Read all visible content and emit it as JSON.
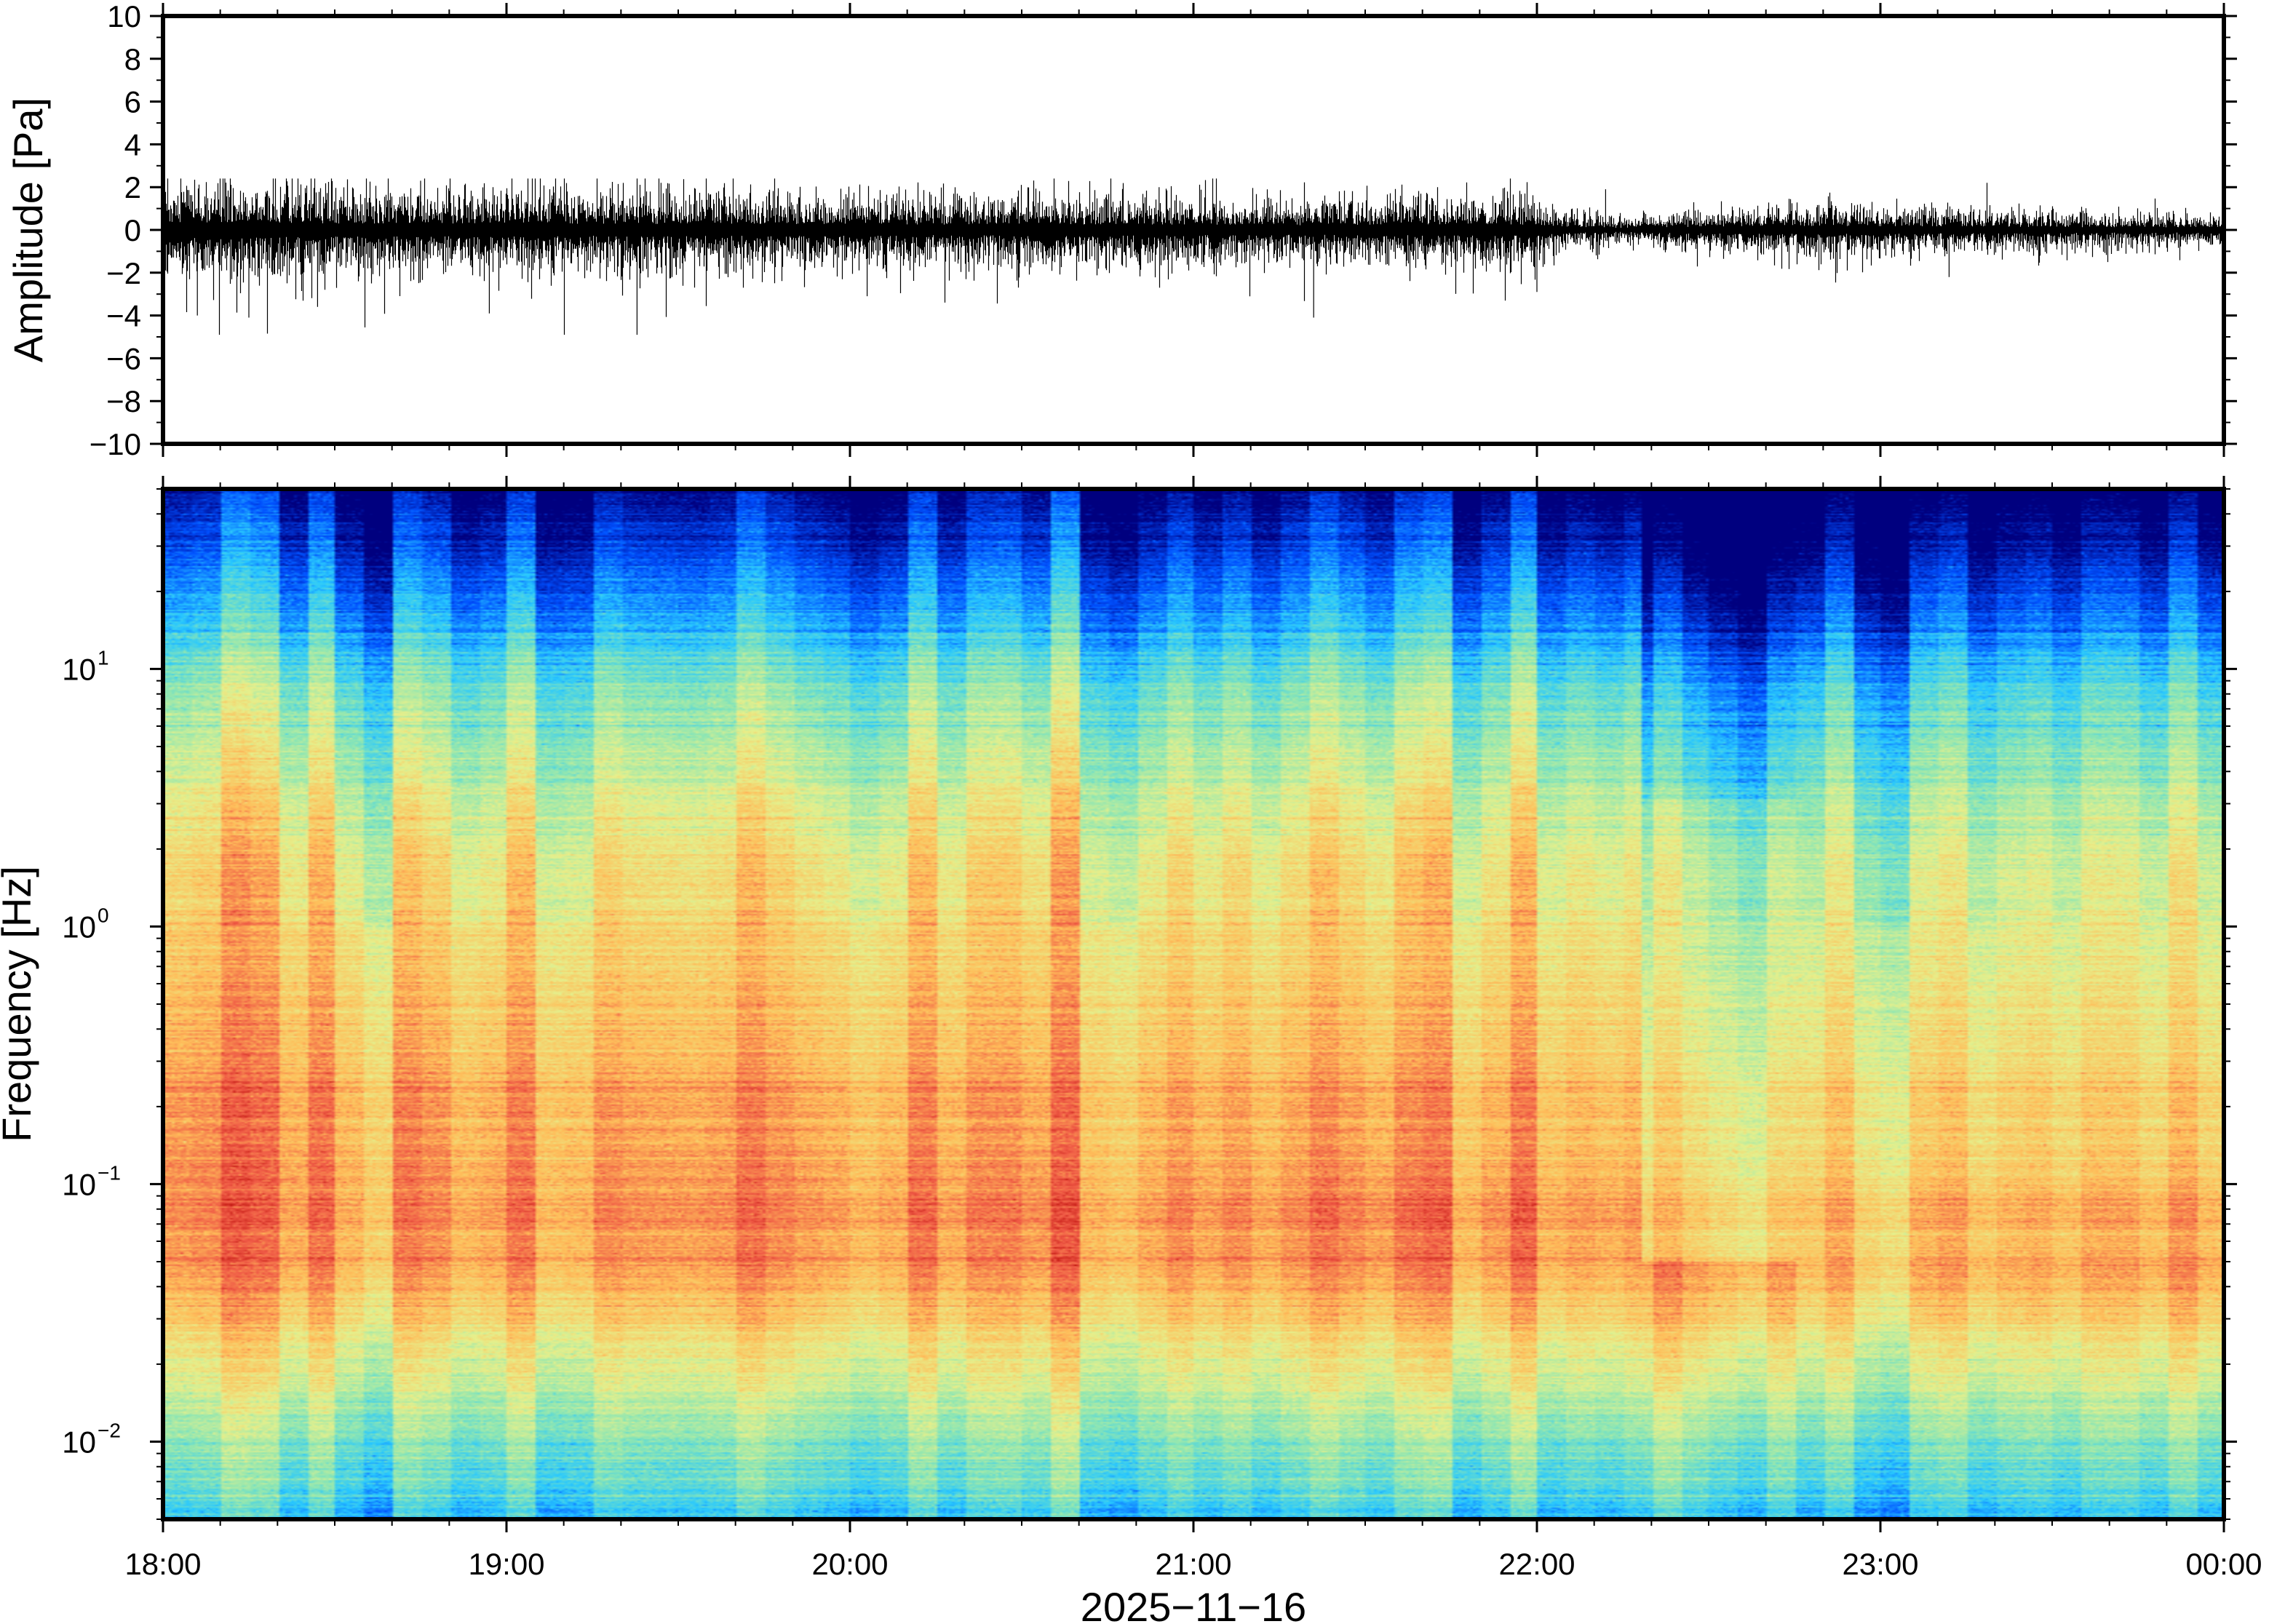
{
  "chart_data": [
    {
      "type": "line",
      "panel": "waveform",
      "ylabel": "Amplitude [Pa]",
      "ylim": [
        -10,
        10
      ],
      "yticks": [
        10,
        8,
        6,
        4,
        2,
        0,
        -2,
        -4,
        -6,
        -8,
        -10
      ],
      "ytick_labels": [
        "10",
        "8",
        "6",
        "4",
        "2",
        "0",
        "−2",
        "−4",
        "−6",
        "−8",
        "−10"
      ],
      "xlim": [
        "18:00",
        "00:00"
      ],
      "series": [
        {
          "envelope_hours": [
            0,
            0.25,
            0.5,
            0.75,
            1,
            1.25,
            1.5,
            1.75,
            2,
            2.25,
            2.5,
            2.75,
            3,
            3.25,
            3.5,
            3.75,
            4,
            4.1,
            4.25,
            4.5,
            4.75,
            5,
            5.25,
            5.5,
            5.75,
            6
          ],
          "typical_amplitude_pa": [
            1.2,
            1.1,
            1.0,
            1.0,
            1.0,
            0.9,
            0.95,
            0.9,
            0.9,
            0.8,
            0.85,
            0.85,
            0.8,
            0.7,
            0.75,
            0.85,
            0.8,
            0.4,
            0.3,
            0.5,
            0.6,
            0.6,
            0.5,
            0.45,
            0.4,
            0.4
          ],
          "peak_min_pa": -4.9,
          "peak_max_pa": 2.4
        }
      ],
      "grid": false
    },
    {
      "type": "heatmap",
      "panel": "spectrogram",
      "ylabel": "Frequency [Hz]",
      "yscale": "log",
      "ylim_hz": [
        0.005,
        50
      ],
      "yticks_hz": [
        0.01,
        0.1,
        1,
        10
      ],
      "ytick_labels": [
        {
          "base": "10",
          "exp": "−2"
        },
        {
          "base": "10",
          "exp": "−1"
        },
        {
          "base": "10",
          "exp": "0"
        },
        {
          "base": "10",
          "exp": "1"
        }
      ],
      "xlabel": "2025−11−16",
      "xtick_labels": [
        "18:00",
        "19:00",
        "20:00",
        "21:00",
        "22:00",
        "23:00",
        "00:00"
      ],
      "colormap": "jet",
      "colormap_stops": [
        "#00007f",
        "#0050ff",
        "#28c8ff",
        "#8ce6b4",
        "#e6f08c",
        "#ffbe5a",
        "#f05a46",
        "#b40000"
      ],
      "low_power_interval": [
        "22:18",
        "22:45"
      ],
      "grid": false
    }
  ]
}
